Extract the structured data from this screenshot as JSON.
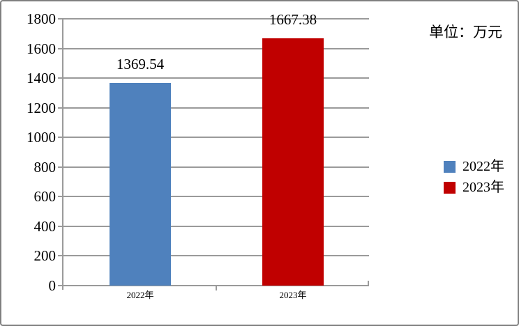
{
  "unit_label": "单位：万元",
  "chart_data": {
    "type": "bar",
    "title": "",
    "categories": [
      "2022年",
      "2023年"
    ],
    "values": [
      1369.54,
      1667.38
    ],
    "value_labels": [
      "1369.54",
      "1667.38"
    ],
    "colors": [
      "#4F81BD",
      "#C00000"
    ],
    "xlabel": "",
    "ylabel": "",
    "unit_label": "单位：万元",
    "y_axis": {
      "min": 0,
      "max": 1800,
      "step": 200,
      "tick_labels": [
        "0",
        "200",
        "400",
        "600",
        "800",
        "1000",
        "1200",
        "1400",
        "1600",
        "1800"
      ]
    },
    "grid": true,
    "legend_position": "right",
    "legend": {
      "items": [
        {
          "label": "2022年",
          "color": "#4F81BD"
        },
        {
          "label": "2023年",
          "color": "#C00000"
        }
      ]
    }
  }
}
